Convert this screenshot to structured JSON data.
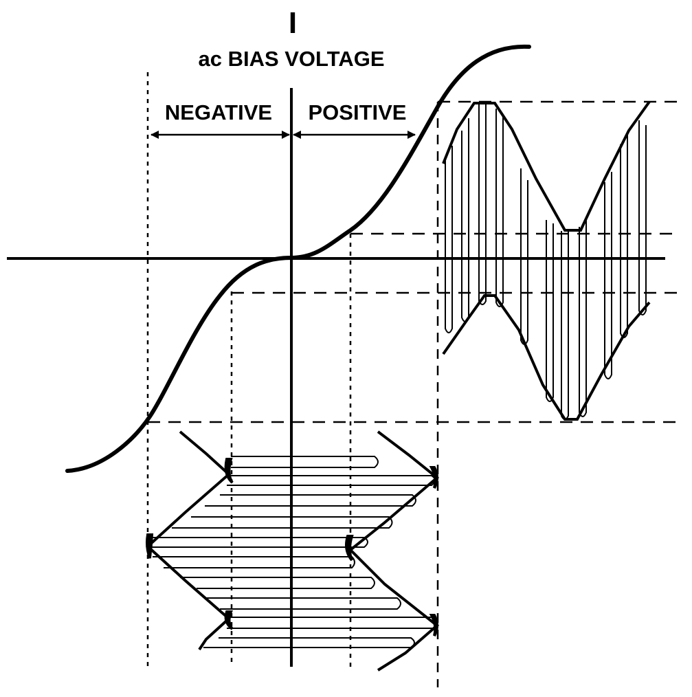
{
  "diagram": {
    "axis_label": "I",
    "title": "ac BIAS VOLTAGE",
    "negative_label": "NEGATIVE",
    "positive_label": "POSITIVE",
    "colors": {
      "ink": "#000000",
      "background": "#ffffff"
    }
  }
}
